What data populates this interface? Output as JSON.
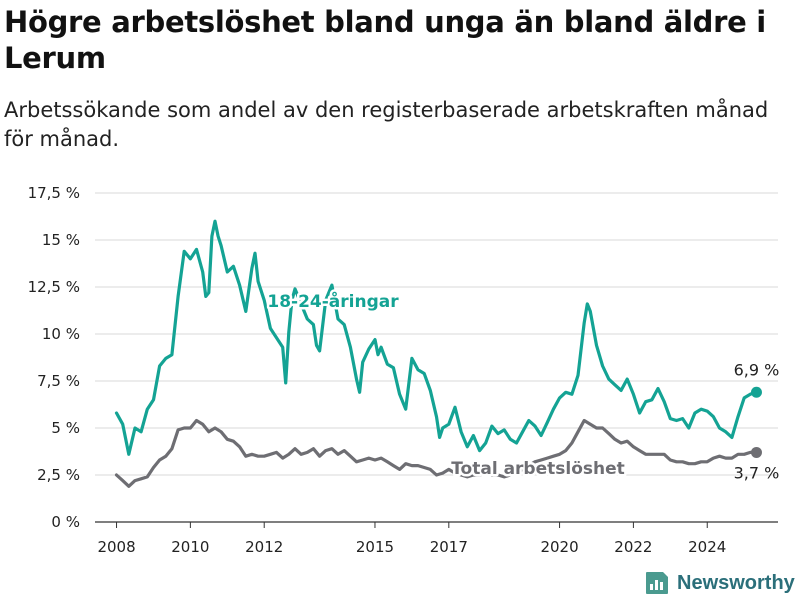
{
  "header": {
    "title": "Högre arbetslöshet bland unga än bland äldre i Lerum",
    "subtitle": "Arbetssökande som andel av den registerbaserade arbetskraften månad för månad."
  },
  "brand": {
    "name": "Newsworthy",
    "icon": "bar-chart-logo-icon"
  },
  "colors": {
    "youth": "#14a394",
    "total": "#6e6e73",
    "grid": "#d9d9d9",
    "axis": "#333333"
  },
  "chart_data": {
    "type": "line",
    "title": "Högre arbetslöshet bland unga än bland äldre i Lerum",
    "subtitle": "Arbetssökande som andel av den registerbaserade arbetskraften månad för månad.",
    "xlabel": "",
    "ylabel": "",
    "xlim": [
      "2007-06",
      "2025-12"
    ],
    "ylim": [
      0,
      17.5
    ],
    "y_ticks": [
      0,
      2.5,
      5,
      7.5,
      10,
      12.5,
      15,
      17.5
    ],
    "y_tick_labels": [
      "0 %",
      "2,5 %",
      "5 %",
      "7,5 %",
      "10 %",
      "12,5 %",
      "15 %",
      "17,5 %"
    ],
    "x_tick_labels": [
      "2008",
      "2010",
      "2012",
      "2015",
      "2017",
      "2020",
      "2022",
      "2024"
    ],
    "x_tick_dates": [
      "2008-01",
      "2010-01",
      "2012-01",
      "2015-01",
      "2017-01",
      "2020-01",
      "2022-01",
      "2024-01"
    ],
    "grid": true,
    "legend": "none (labels placed directly on lines)",
    "series": [
      {
        "name": "18-24-åringar",
        "color": "#14a394",
        "end_label": "6,9 %",
        "points": [
          [
            "2008-01",
            5.8
          ],
          [
            "2008-03",
            5.2
          ],
          [
            "2008-05",
            3.6
          ],
          [
            "2008-07",
            5.0
          ],
          [
            "2008-09",
            4.8
          ],
          [
            "2008-11",
            6.0
          ],
          [
            "2009-01",
            6.5
          ],
          [
            "2009-03",
            8.3
          ],
          [
            "2009-05",
            8.7
          ],
          [
            "2009-07",
            8.9
          ],
          [
            "2009-09",
            12.0
          ],
          [
            "2009-11",
            14.4
          ],
          [
            "2010-01",
            14.0
          ],
          [
            "2010-03",
            14.5
          ],
          [
            "2010-05",
            13.3
          ],
          [
            "2010-06",
            12.0
          ],
          [
            "2010-07",
            12.2
          ],
          [
            "2010-08",
            15.2
          ],
          [
            "2010-09",
            16.0
          ],
          [
            "2010-10",
            15.2
          ],
          [
            "2010-11",
            14.7
          ],
          [
            "2011-01",
            13.3
          ],
          [
            "2011-03",
            13.6
          ],
          [
            "2011-05",
            12.6
          ],
          [
            "2011-07",
            11.2
          ],
          [
            "2011-09",
            13.5
          ],
          [
            "2011-10",
            14.3
          ],
          [
            "2011-11",
            12.8
          ],
          [
            "2012-01",
            11.8
          ],
          [
            "2012-03",
            10.3
          ],
          [
            "2012-05",
            9.8
          ],
          [
            "2012-07",
            9.3
          ],
          [
            "2012-08",
            7.4
          ],
          [
            "2012-09",
            10.1
          ],
          [
            "2012-10",
            11.8
          ],
          [
            "2012-11",
            12.4
          ],
          [
            "2013-01",
            11.6
          ],
          [
            "2013-03",
            10.8
          ],
          [
            "2013-05",
            10.5
          ],
          [
            "2013-06",
            9.4
          ],
          [
            "2013-07",
            9.1
          ],
          [
            "2013-09",
            11.8
          ],
          [
            "2013-11",
            12.6
          ],
          [
            "2014-01",
            10.8
          ],
          [
            "2014-03",
            10.5
          ],
          [
            "2014-05",
            9.3
          ],
          [
            "2014-07",
            7.6
          ],
          [
            "2014-08",
            6.9
          ],
          [
            "2014-09",
            8.5
          ],
          [
            "2014-11",
            9.2
          ],
          [
            "2015-01",
            9.7
          ],
          [
            "2015-02",
            8.9
          ],
          [
            "2015-03",
            9.3
          ],
          [
            "2015-05",
            8.4
          ],
          [
            "2015-07",
            8.2
          ],
          [
            "2015-09",
            6.8
          ],
          [
            "2015-11",
            6.0
          ],
          [
            "2016-01",
            8.7
          ],
          [
            "2016-03",
            8.1
          ],
          [
            "2016-05",
            7.9
          ],
          [
            "2016-07",
            7.0
          ],
          [
            "2016-09",
            5.6
          ],
          [
            "2016-10",
            4.5
          ],
          [
            "2016-11",
            5.0
          ],
          [
            "2017-01",
            5.2
          ],
          [
            "2017-03",
            6.1
          ],
          [
            "2017-05",
            4.8
          ],
          [
            "2017-07",
            4.0
          ],
          [
            "2017-09",
            4.6
          ],
          [
            "2017-11",
            3.8
          ],
          [
            "2018-01",
            4.2
          ],
          [
            "2018-03",
            5.1
          ],
          [
            "2018-05",
            4.7
          ],
          [
            "2018-07",
            4.9
          ],
          [
            "2018-09",
            4.4
          ],
          [
            "2018-11",
            4.2
          ],
          [
            "2019-01",
            4.8
          ],
          [
            "2019-03",
            5.4
          ],
          [
            "2019-05",
            5.1
          ],
          [
            "2019-07",
            4.6
          ],
          [
            "2019-09",
            5.3
          ],
          [
            "2019-11",
            6.0
          ],
          [
            "2020-01",
            6.6
          ],
          [
            "2020-03",
            6.9
          ],
          [
            "2020-05",
            6.8
          ],
          [
            "2020-07",
            7.8
          ],
          [
            "2020-09",
            10.6
          ],
          [
            "2020-10",
            11.6
          ],
          [
            "2020-11",
            11.2
          ],
          [
            "2021-01",
            9.4
          ],
          [
            "2021-03",
            8.3
          ],
          [
            "2021-05",
            7.6
          ],
          [
            "2021-07",
            7.3
          ],
          [
            "2021-09",
            7.0
          ],
          [
            "2021-11",
            7.6
          ],
          [
            "2022-01",
            6.8
          ],
          [
            "2022-03",
            5.8
          ],
          [
            "2022-05",
            6.4
          ],
          [
            "2022-07",
            6.5
          ],
          [
            "2022-09",
            7.1
          ],
          [
            "2022-11",
            6.4
          ],
          [
            "2023-01",
            5.5
          ],
          [
            "2023-03",
            5.4
          ],
          [
            "2023-05",
            5.5
          ],
          [
            "2023-07",
            5.0
          ],
          [
            "2023-09",
            5.8
          ],
          [
            "2023-11",
            6.0
          ],
          [
            "2024-01",
            5.9
          ],
          [
            "2024-03",
            5.6
          ],
          [
            "2024-05",
            5.0
          ],
          [
            "2024-07",
            4.8
          ],
          [
            "2024-09",
            4.5
          ],
          [
            "2024-11",
            5.6
          ],
          [
            "2025-01",
            6.6
          ],
          [
            "2025-03",
            6.8
          ],
          [
            "2025-05",
            6.9
          ]
        ]
      },
      {
        "name": "Total arbetslöshet",
        "color": "#6e6e73",
        "end_label": "3,7 %",
        "points": [
          [
            "2008-01",
            2.5
          ],
          [
            "2008-03",
            2.2
          ],
          [
            "2008-05",
            1.9
          ],
          [
            "2008-07",
            2.2
          ],
          [
            "2008-09",
            2.3
          ],
          [
            "2008-11",
            2.4
          ],
          [
            "2009-01",
            2.9
          ],
          [
            "2009-03",
            3.3
          ],
          [
            "2009-05",
            3.5
          ],
          [
            "2009-07",
            3.9
          ],
          [
            "2009-09",
            4.9
          ],
          [
            "2009-11",
            5.0
          ],
          [
            "2010-01",
            5.0
          ],
          [
            "2010-03",
            5.4
          ],
          [
            "2010-05",
            5.2
          ],
          [
            "2010-07",
            4.8
          ],
          [
            "2010-09",
            5.0
          ],
          [
            "2010-11",
            4.8
          ],
          [
            "2011-01",
            4.4
          ],
          [
            "2011-03",
            4.3
          ],
          [
            "2011-05",
            4.0
          ],
          [
            "2011-07",
            3.5
          ],
          [
            "2011-09",
            3.6
          ],
          [
            "2011-11",
            3.5
          ],
          [
            "2012-01",
            3.5
          ],
          [
            "2012-03",
            3.6
          ],
          [
            "2012-05",
            3.7
          ],
          [
            "2012-07",
            3.4
          ],
          [
            "2012-09",
            3.6
          ],
          [
            "2012-11",
            3.9
          ],
          [
            "2013-01",
            3.6
          ],
          [
            "2013-03",
            3.7
          ],
          [
            "2013-05",
            3.9
          ],
          [
            "2013-07",
            3.5
          ],
          [
            "2013-09",
            3.8
          ],
          [
            "2013-11",
            3.9
          ],
          [
            "2014-01",
            3.6
          ],
          [
            "2014-03",
            3.8
          ],
          [
            "2014-05",
            3.5
          ],
          [
            "2014-07",
            3.2
          ],
          [
            "2014-09",
            3.3
          ],
          [
            "2014-11",
            3.4
          ],
          [
            "2015-01",
            3.3
          ],
          [
            "2015-03",
            3.4
          ],
          [
            "2015-05",
            3.2
          ],
          [
            "2015-07",
            3.0
          ],
          [
            "2015-09",
            2.8
          ],
          [
            "2015-11",
            3.1
          ],
          [
            "2016-01",
            3.0
          ],
          [
            "2016-03",
            3.0
          ],
          [
            "2016-05",
            2.9
          ],
          [
            "2016-07",
            2.8
          ],
          [
            "2016-09",
            2.5
          ],
          [
            "2016-11",
            2.6
          ],
          [
            "2017-01",
            2.8
          ],
          [
            "2017-03",
            2.6
          ],
          [
            "2017-05",
            2.5
          ],
          [
            "2017-07",
            2.4
          ],
          [
            "2017-09",
            2.5
          ],
          [
            "2017-11",
            2.5
          ],
          [
            "2018-01",
            2.6
          ],
          [
            "2018-03",
            2.5
          ],
          [
            "2018-05",
            2.5
          ],
          [
            "2018-07",
            2.4
          ],
          [
            "2018-09",
            2.5
          ],
          [
            "2018-11",
            2.6
          ],
          [
            "2019-01",
            2.8
          ],
          [
            "2019-03",
            3.0
          ],
          [
            "2019-05",
            3.2
          ],
          [
            "2019-07",
            3.3
          ],
          [
            "2019-09",
            3.4
          ],
          [
            "2019-11",
            3.5
          ],
          [
            "2020-01",
            3.6
          ],
          [
            "2020-03",
            3.8
          ],
          [
            "2020-05",
            4.2
          ],
          [
            "2020-07",
            4.8
          ],
          [
            "2020-09",
            5.4
          ],
          [
            "2020-11",
            5.2
          ],
          [
            "2021-01",
            5.0
          ],
          [
            "2021-03",
            5.0
          ],
          [
            "2021-05",
            4.7
          ],
          [
            "2021-07",
            4.4
          ],
          [
            "2021-09",
            4.2
          ],
          [
            "2021-11",
            4.3
          ],
          [
            "2022-01",
            4.0
          ],
          [
            "2022-03",
            3.8
          ],
          [
            "2022-05",
            3.6
          ],
          [
            "2022-07",
            3.6
          ],
          [
            "2022-09",
            3.6
          ],
          [
            "2022-11",
            3.6
          ],
          [
            "2023-01",
            3.3
          ],
          [
            "2023-03",
            3.2
          ],
          [
            "2023-05",
            3.2
          ],
          [
            "2023-07",
            3.1
          ],
          [
            "2023-09",
            3.1
          ],
          [
            "2023-11",
            3.2
          ],
          [
            "2024-01",
            3.2
          ],
          [
            "2024-03",
            3.4
          ],
          [
            "2024-05",
            3.5
          ],
          [
            "2024-07",
            3.4
          ],
          [
            "2024-09",
            3.4
          ],
          [
            "2024-11",
            3.6
          ],
          [
            "2025-01",
            3.6
          ],
          [
            "2025-03",
            3.7
          ],
          [
            "2025-05",
            3.7
          ]
        ]
      }
    ]
  }
}
